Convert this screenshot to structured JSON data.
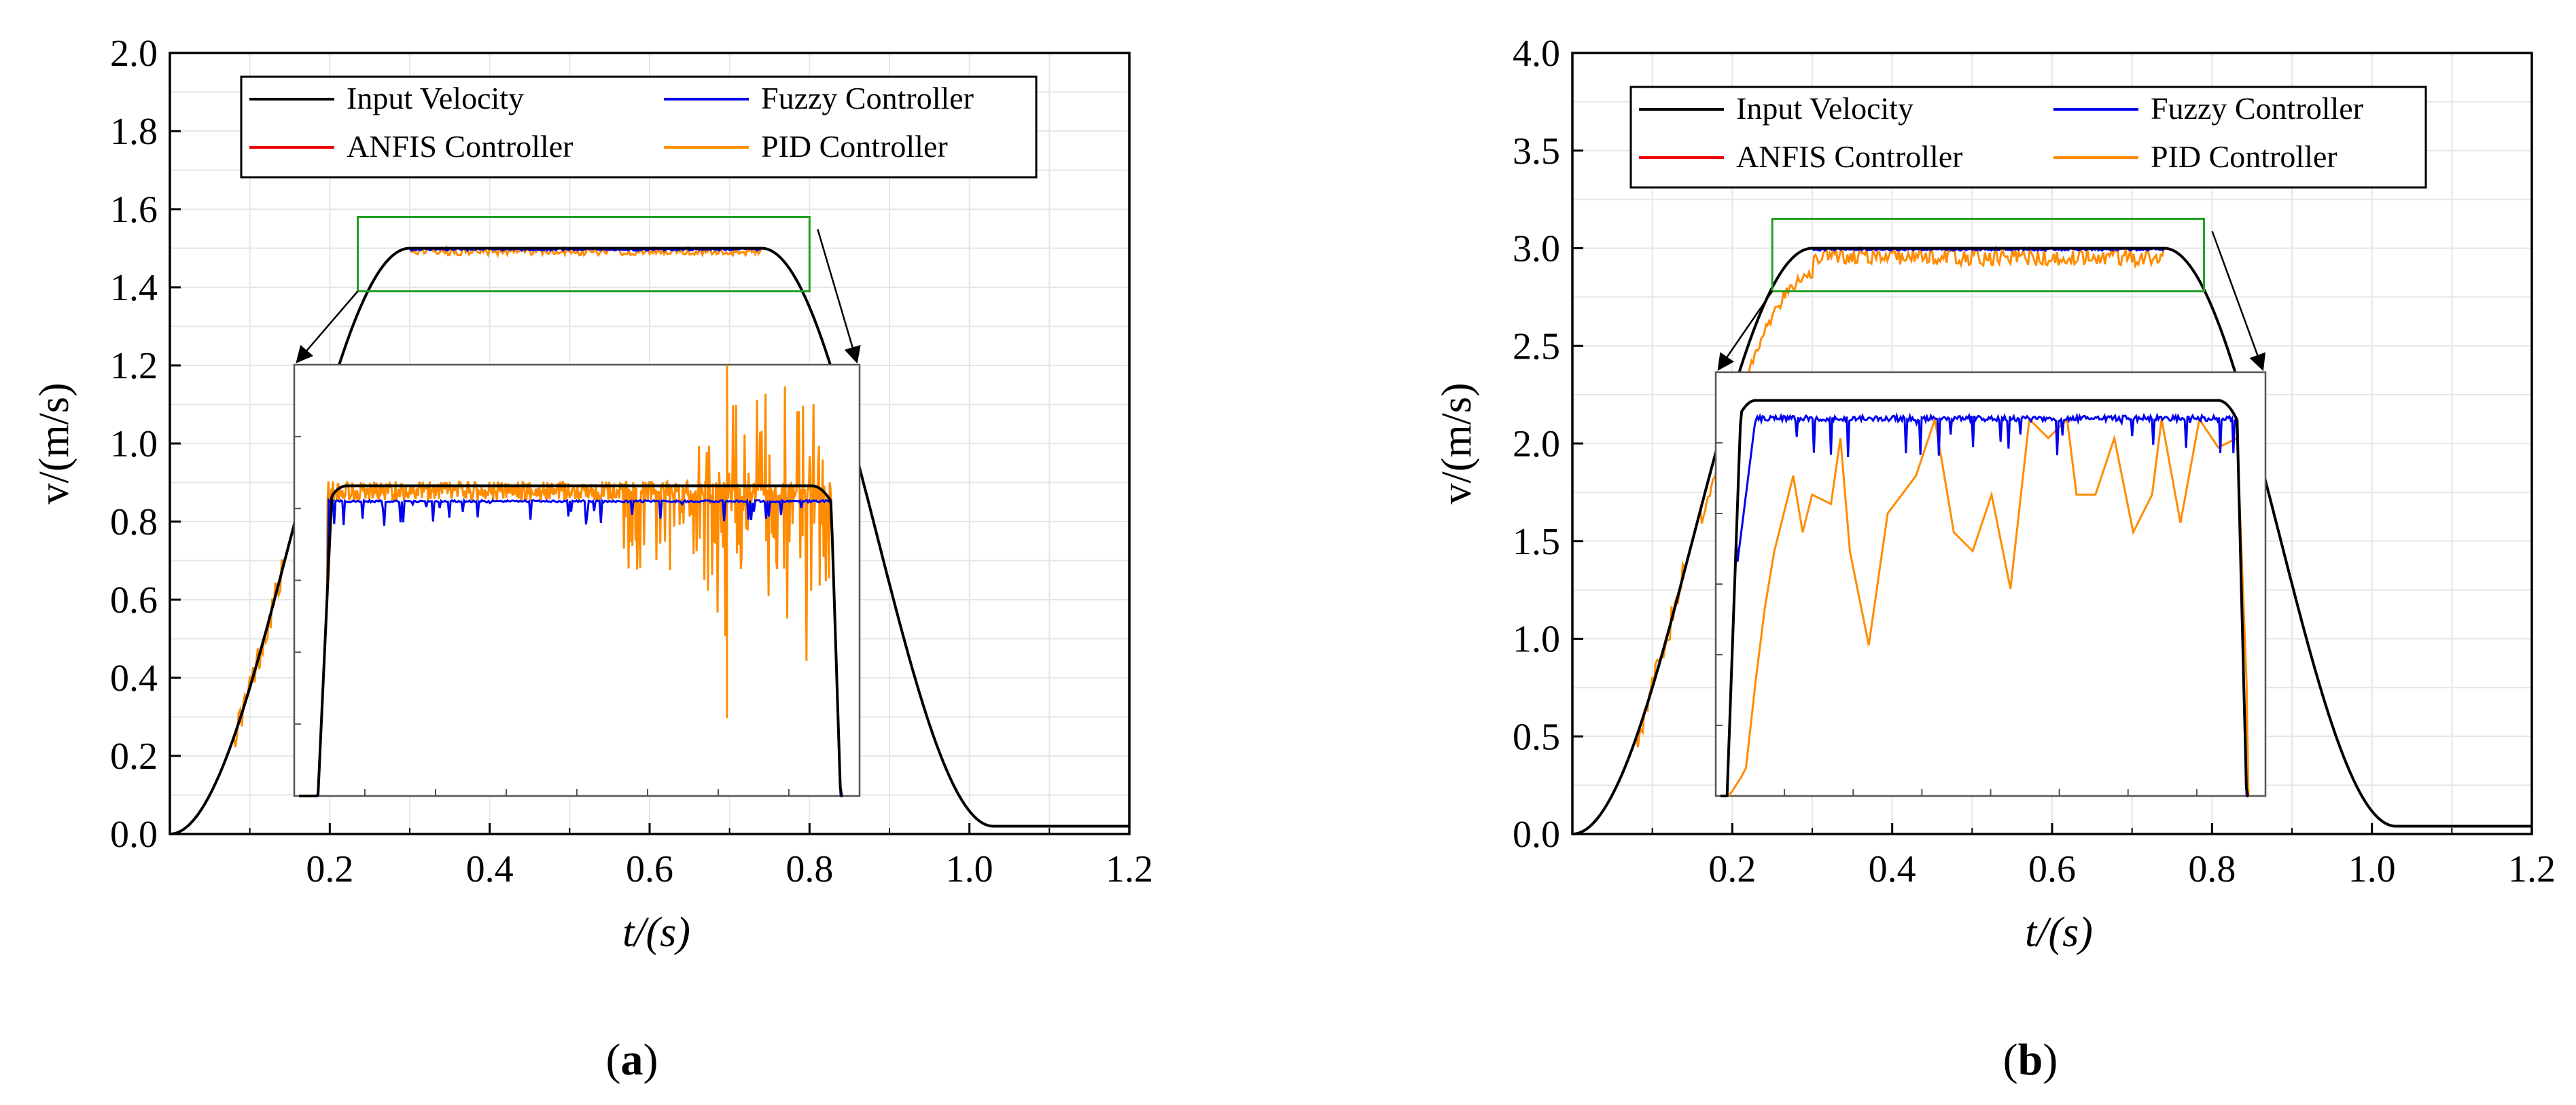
{
  "chart_data": [
    {
      "type": "line",
      "panel_label": "a",
      "xlabel": "t/(s)",
      "ylabel": "v/(m/s)",
      "xlim": [
        0,
        1.2
      ],
      "ylim": [
        0,
        2.0
      ],
      "xticks": [
        0.2,
        0.4,
        0.6,
        0.8,
        1.0,
        1.2
      ],
      "xtick_labels": [
        "0.2",
        "0.4",
        "0.6",
        "0.8",
        "1.0",
        "1.2"
      ],
      "yticks": [
        0.0,
        0.2,
        0.4,
        0.6,
        0.8,
        1.0,
        1.2,
        1.4,
        1.6,
        1.8,
        2.0
      ],
      "ytick_labels": [
        "0.0",
        "0.2",
        "0.4",
        "0.6",
        "0.8",
        "1.0",
        "1.2",
        "1.4",
        "1.6",
        "1.8",
        "2.0"
      ],
      "grid": true,
      "legend_position": "top",
      "legend": [
        {
          "label": "Input Velocity",
          "color": "#000000"
        },
        {
          "label": "Fuzzy Controller",
          "color": "#0000ee"
        },
        {
          "label": "ANFIS  Controller",
          "color": "#ee0000"
        },
        {
          "label": "PID Controller",
          "color": "#ff8c00"
        }
      ],
      "profile": {
        "t_start": 0.0,
        "t_rise_end": 0.3,
        "t_fall_start": 0.74,
        "t_end": 1.03,
        "v_max": 1.5,
        "v_final": 0.02
      },
      "zoom_window": {
        "t_range": [
          0.235,
          0.8
        ],
        "v_range": [
          1.39,
          1.58
        ]
      },
      "inset": {
        "fuzzy_level": 0.72,
        "pid_noise": 0.05,
        "pid_spikes": [
          {
            "t": 0.69,
            "v": 1.05
          },
          {
            "t": 0.69,
            "v": 0.19
          },
          {
            "t": 0.77,
            "v": 0.95
          },
          {
            "t": 0.63,
            "v": 0.55
          },
          {
            "t": 0.67,
            "v": 0.5
          }
        ]
      }
    },
    {
      "type": "line",
      "panel_label": "b",
      "xlabel": "t/(s)",
      "ylabel": "v/(m/s)",
      "xlim": [
        0,
        1.2
      ],
      "ylim": [
        0,
        4.0
      ],
      "xticks": [
        0.2,
        0.4,
        0.6,
        0.8,
        1.0,
        1.2
      ],
      "xtick_labels": [
        "0.2",
        "0.4",
        "0.6",
        "0.8",
        "1.0",
        "1.2"
      ],
      "yticks": [
        0.0,
        0.5,
        1.0,
        1.5,
        2.0,
        2.5,
        3.0,
        3.5,
        4.0
      ],
      "ytick_labels": [
        "0.0",
        "0.5",
        "1.0",
        "1.5",
        "2.0",
        "2.5",
        "3.0",
        "3.5",
        "4.0"
      ],
      "grid": true,
      "legend_position": "top",
      "legend": [
        {
          "label": "Input Velocity",
          "color": "#000000"
        },
        {
          "label": "Fuzzy Controller",
          "color": "#0000ee"
        },
        {
          "label": "ANFIS  Controller",
          "color": "#ee0000"
        },
        {
          "label": "PID Controller",
          "color": "#ff8c00"
        }
      ],
      "profile": {
        "t_start": 0.0,
        "t_rise_end": 0.3,
        "t_fall_start": 0.74,
        "t_end": 1.03,
        "v_max": 3.0,
        "v_final": 0.04
      },
      "zoom_window": {
        "t_range": [
          0.25,
          0.79
        ],
        "v_range": [
          2.78,
          3.15
        ]
      },
      "inset": {
        "fuzzy_level": 2.0,
        "pid_points": [
          [
            0.28,
            0.15
          ],
          [
            0.29,
            0.6
          ],
          [
            0.3,
            1.0
          ],
          [
            0.31,
            1.3
          ],
          [
            0.33,
            1.7
          ],
          [
            0.34,
            1.4
          ],
          [
            0.35,
            1.6
          ],
          [
            0.37,
            1.55
          ],
          [
            0.38,
            1.9
          ],
          [
            0.39,
            1.3
          ],
          [
            0.41,
            0.8
          ],
          [
            0.43,
            1.5
          ],
          [
            0.46,
            1.7
          ],
          [
            0.48,
            2.0
          ],
          [
            0.5,
            1.4
          ],
          [
            0.52,
            1.3
          ],
          [
            0.54,
            1.6
          ],
          [
            0.56,
            1.1
          ],
          [
            0.58,
            2.0
          ],
          [
            0.6,
            1.9
          ],
          [
            0.62,
            2.0
          ],
          [
            0.63,
            1.6
          ],
          [
            0.65,
            1.6
          ],
          [
            0.67,
            1.9
          ],
          [
            0.69,
            1.4
          ],
          [
            0.71,
            1.6
          ],
          [
            0.72,
            2.0
          ],
          [
            0.74,
            1.45
          ],
          [
            0.76,
            2.0
          ],
          [
            0.78,
            1.85
          ]
        ]
      }
    }
  ]
}
